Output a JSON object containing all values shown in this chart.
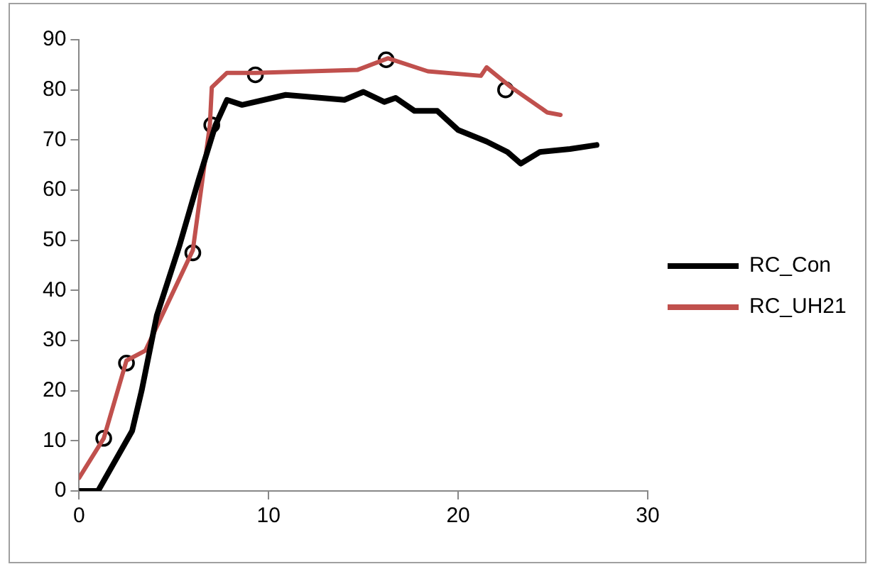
{
  "chart_data": {
    "type": "line",
    "xlim": [
      0,
      30
    ],
    "xticks": [
      0,
      10,
      20,
      30
    ],
    "ylim": [
      0,
      90
    ],
    "yticks": [
      0,
      10,
      20,
      30,
      40,
      50,
      60,
      70,
      80,
      90
    ],
    "grid": false,
    "legend": "right",
    "marker": "none",
    "line_style": "solid",
    "series": [
      {
        "name": "RC_Con",
        "color": "#000000",
        "x": [
          0,
          1.0,
          2.8,
          3.3,
          4.1,
          5.3,
          6.3,
          7.2,
          7.8,
          8.6,
          10.9,
          14,
          15,
          16.1,
          16.7,
          17.7,
          18.9,
          20,
          21.5,
          22.6,
          23.3,
          24.3,
          25.9,
          27.3
        ],
        "values": [
          0,
          0,
          12,
          20,
          35,
          49,
          62,
          73,
          78,
          77,
          79,
          78,
          79.6,
          77.6,
          78.4,
          75.8,
          75.8,
          72,
          69.7,
          67.6,
          65.3,
          67.6,
          68.2,
          69
        ]
      },
      {
        "name": "RC_UH21",
        "color": "#c0504d",
        "x": [
          0,
          1.3,
          2.5,
          3.5,
          6,
          6.9,
          7.0,
          7.8,
          9.3,
          14.7,
          16.3,
          18.4,
          21.2,
          21.5,
          22.8,
          24.7,
          25.4
        ],
        "values": [
          2.6,
          10.5,
          26,
          28,
          48,
          73,
          80.5,
          83.4,
          83.4,
          84,
          86.3,
          83.7,
          82.8,
          84.5,
          80.5,
          75.5,
          75
        ]
      },
      {
        "type": "scatter",
        "marker": "circle",
        "color": "#000000",
        "x": [
          1.3,
          2.5,
          6,
          7,
          9.3,
          16.2,
          22.5
        ],
        "values": [
          10.5,
          25.5,
          47.5,
          73,
          83,
          86,
          80
        ]
      }
    ]
  }
}
